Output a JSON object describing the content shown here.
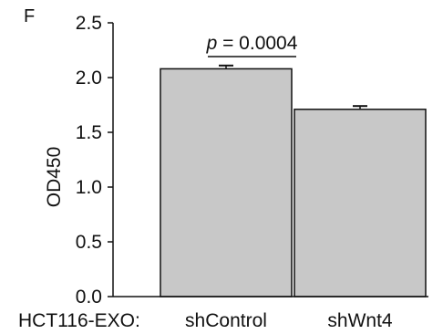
{
  "panel_label": "F",
  "group_label": "HCT116-EXO:",
  "annotation": {
    "prefix": "p",
    "text": " = 0.0004"
  },
  "colors": {
    "bar_fill": "#c8c8c8",
    "stroke": "#111111",
    "background": "#ffffff"
  },
  "chart_data": {
    "type": "bar",
    "categories": [
      "shControl",
      "shWnt4"
    ],
    "values": [
      2.08,
      1.71
    ],
    "error": [
      0.03,
      0.03
    ],
    "title": "",
    "xlabel": "",
    "ylabel": "OD450",
    "ylim": [
      0,
      2.5
    ],
    "yticks": [
      0,
      0.5,
      1.0,
      1.5,
      2.0,
      2.5
    ],
    "ytick_labels": [
      "0.0",
      "0.5",
      "1.0",
      "1.5",
      "2.0",
      "2.5"
    ],
    "grid": false,
    "legend": "none"
  }
}
